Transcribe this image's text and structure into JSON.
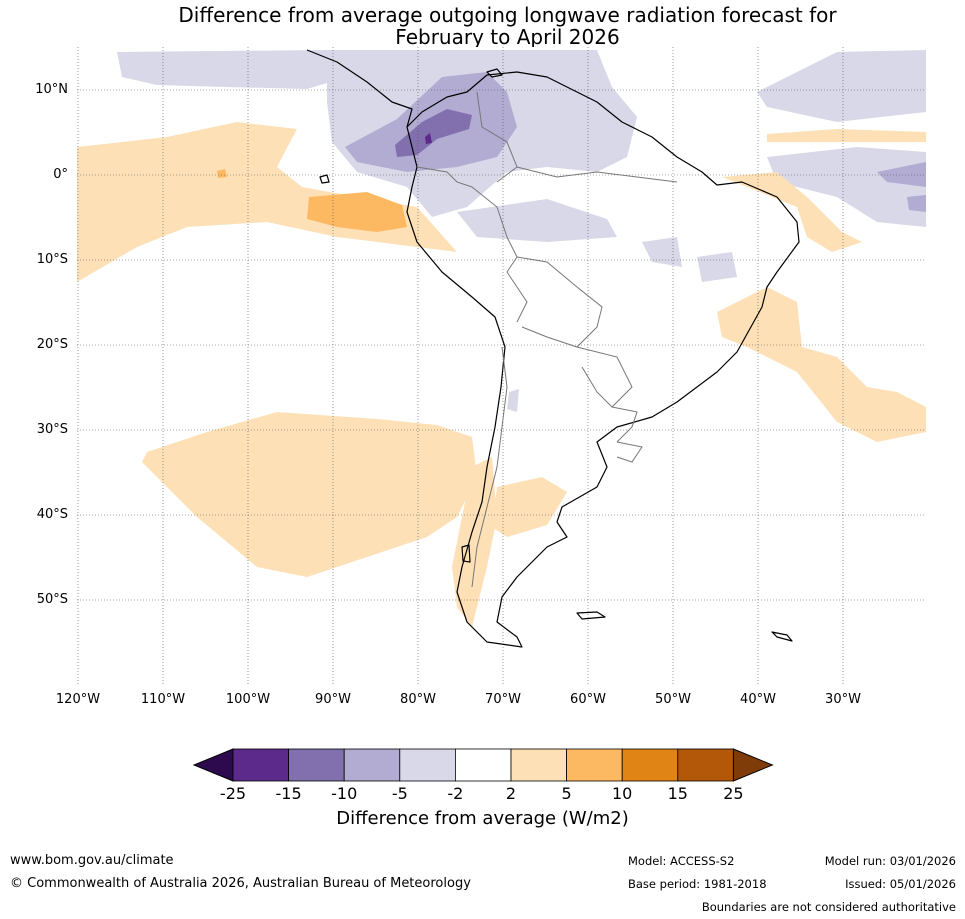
{
  "title_line1": "Difference from average outgoing longwave radiation forecast for",
  "title_line2": "February to April 2026",
  "lat_labels": [
    "10°N",
    "0°",
    "10°S",
    "20°S",
    "30°S",
    "40°S",
    "50°S"
  ],
  "lon_labels": [
    "120°W",
    "110°W",
    "100°W",
    "90°W",
    "80°W",
    "70°W",
    "60°W",
    "50°W",
    "40°W",
    "30°W"
  ],
  "colorbar": {
    "ticks": [
      "-25",
      "-15",
      "-10",
      "-5",
      "-2",
      "2",
      "5",
      "10",
      "15",
      "25"
    ],
    "colors": [
      "#2d0a4e",
      "#5b2a8a",
      "#8170ad",
      "#b2abd2",
      "#d8d8e9",
      "#ffffff",
      "#fde0b5",
      "#fdb862",
      "#e08416",
      "#b35808",
      "#7f3b08"
    ],
    "label": "Difference from average (W/m2)"
  },
  "footer": {
    "website": "www.bom.gov.au/climate",
    "copyright": "© Commonwealth of Australia 2026, Australian Bureau of Meteorology",
    "model": "Model: ACCESS-S2",
    "base_period": "Base period: 1981-2018",
    "model_run": "Model run: 03/01/2026",
    "issued": "Issued: 05/01/2026",
    "disclaimer": "Boundaries are not considered authoritative"
  }
}
